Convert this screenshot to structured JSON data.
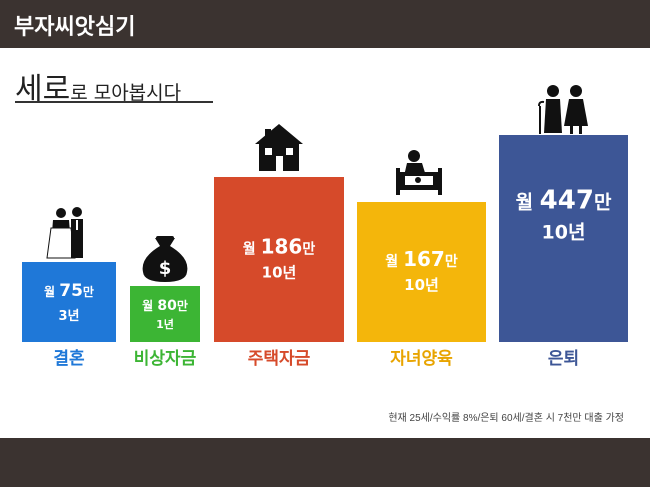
{
  "header": {
    "brand": "부자씨앗심기"
  },
  "headline": {
    "big": "세로",
    "small": "로 모아봅시다"
  },
  "footnote": "현재 25세/수익률 8%/은퇴 60세/결혼 시 7천만 대출 가정",
  "chart_data": {
    "type": "bar",
    "title": "",
    "categories": [
      "결혼",
      "비상자금",
      "주택자금",
      "자녀양육",
      "은퇴"
    ],
    "series": [
      {
        "values": [
          75,
          80,
          186,
          167,
          447
        ]
      }
    ],
    "value_labels": [
      {
        "prefix": "월",
        "amount": "75",
        "unit": "만",
        "period": "3년"
      },
      {
        "prefix": "월",
        "amount": "80",
        "unit": "만",
        "period": "1년"
      },
      {
        "prefix": "월",
        "amount": "186",
        "unit": "만",
        "period": "10년"
      },
      {
        "prefix": "월",
        "amount": "167",
        "unit": "만",
        "period": "10년"
      },
      {
        "prefix": "월",
        "amount": "447",
        "unit": "만",
        "period": "10년"
      }
    ],
    "colors": [
      "#1f78d8",
      "#3cb534",
      "#d64a2a",
      "#f4b60b",
      "#3d5696"
    ],
    "category_label_colors": [
      "#1f78d8",
      "#3cb534",
      "#d64a2a",
      "#e8a400",
      "#3d5696"
    ],
    "icons": [
      "wedding-couple-icon",
      "money-bag-icon",
      "house-icon",
      "baby-crib-icon",
      "elderly-couple-icon"
    ],
    "grid": false,
    "legend": "none"
  }
}
